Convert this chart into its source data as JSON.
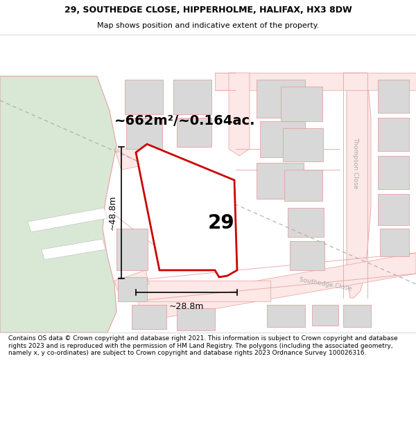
{
  "title_line1": "29, SOUTHEDGE CLOSE, HIPPERHOLME, HALIFAX, HX3 8DW",
  "title_line2": "Map shows position and indicative extent of the property.",
  "footer_text": "Contains OS data © Crown copyright and database right 2021. This information is subject to Crown copyright and database rights 2023 and is reproduced with the permission of HM Land Registry. The polygons (including the associated geometry, namely x, y co-ordinates) are subject to Crown copyright and database rights 2023 Ordnance Survey 100026316.",
  "area_label": "~662m²/~0.164ac.",
  "number_label": "29",
  "dim_horiz": "~28.8m",
  "dim_vert": "~48.8m",
  "bg_map_color": "#f5f5f5",
  "green_area_color": "#d8e8d5",
  "building_color": "#d8d8d8",
  "road_fill": "#fce8e6",
  "road_stroke": "#e8a0a0",
  "highlight_color": "#cc0000",
  "dashed_line_color": "#aaaaaa",
  "street_label_thompson": "Thompson Close",
  "street_label_southedge": "Southedge Close",
  "title_fontsize": 9,
  "subtitle_fontsize": 8,
  "footer_fontsize": 6.5,
  "area_label_fontsize": 14,
  "number_fontsize": 20,
  "dim_fontsize": 9
}
